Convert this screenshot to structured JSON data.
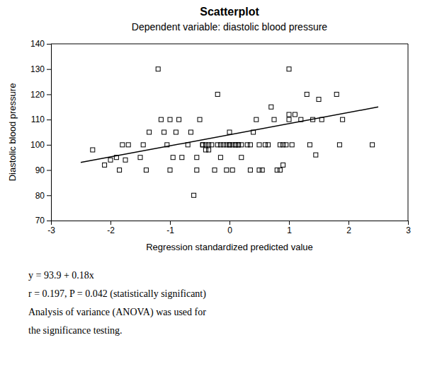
{
  "chart_data": {
    "type": "scatter",
    "title": "Scatterplot",
    "subtitle": "Dependent variable: diastolic blood pressure",
    "x_label": "Regression standardized predicted value",
    "y_label": "Diastolic blood pressure",
    "xlim": [
      -3,
      3
    ],
    "ylim": [
      70,
      140
    ],
    "xticks": [
      -3,
      -2,
      -1,
      0,
      1,
      2,
      3
    ],
    "yticks": [
      70,
      80,
      90,
      100,
      110,
      120,
      130,
      140
    ],
    "grid": false,
    "series": [
      {
        "type": "scatter",
        "marker": "square",
        "color": "#000000",
        "x": [
          -2.3,
          -2.1,
          -2.0,
          -1.9,
          -1.85,
          -1.8,
          -1.75,
          -1.7,
          -1.5,
          -1.45,
          -1.4,
          -1.35,
          -1.2,
          -1.15,
          -1.1,
          -1.05,
          -1.0,
          -1.0,
          -0.95,
          -0.9,
          -0.85,
          -0.8,
          -0.7,
          -0.65,
          -0.6,
          -0.55,
          -0.55,
          -0.5,
          -0.45,
          -0.45,
          -0.4,
          -0.4,
          -0.35,
          -0.35,
          -0.3,
          -0.25,
          -0.2,
          -0.2,
          -0.15,
          -0.15,
          -0.1,
          -0.05,
          -0.05,
          0.0,
          0.0,
          0.0,
          0.05,
          0.05,
          0.1,
          0.1,
          0.15,
          0.15,
          0.2,
          0.2,
          0.3,
          0.35,
          0.35,
          0.4,
          0.45,
          0.5,
          0.5,
          0.55,
          0.6,
          0.65,
          0.7,
          0.75,
          0.8,
          0.85,
          0.85,
          0.9,
          0.9,
          0.95,
          1.0,
          1.0,
          1.0,
          1.05,
          1.1,
          1.2,
          1.3,
          1.35,
          1.4,
          1.45,
          1.5,
          1.55,
          1.8,
          1.85,
          1.9,
          2.4
        ],
        "values": [
          98,
          92,
          94,
          95,
          90,
          100,
          94,
          100,
          95,
          100,
          90,
          105,
          130,
          110,
          105,
          100,
          90,
          110,
          95,
          105,
          110,
          95,
          100,
          105,
          80,
          95,
          90,
          110,
          100,
          100,
          98,
          100,
          98,
          100,
          100,
          90,
          100,
          120,
          95,
          100,
          100,
          100,
          90,
          100,
          100,
          105,
          90,
          100,
          100,
          100,
          100,
          100,
          95,
          100,
          100,
          100,
          90,
          105,
          110,
          100,
          90,
          90,
          100,
          100,
          115,
          110,
          90,
          100,
          90,
          92,
          100,
          100,
          110,
          112,
          130,
          100,
          112,
          110,
          120,
          100,
          110,
          96,
          118,
          110,
          120,
          100,
          110,
          100
        ]
      },
      {
        "type": "line",
        "color": "#000000",
        "x": [
          -2.5,
          2.5
        ],
        "values": [
          93.0,
          115.0
        ]
      }
    ],
    "annotations": [
      "y = 93.9 + 0.18x",
      "r = 0.197, P = 0.042 (statistically significant)",
      "Analysis of variance (ANOVA) was used for",
      "the significance testing."
    ]
  }
}
